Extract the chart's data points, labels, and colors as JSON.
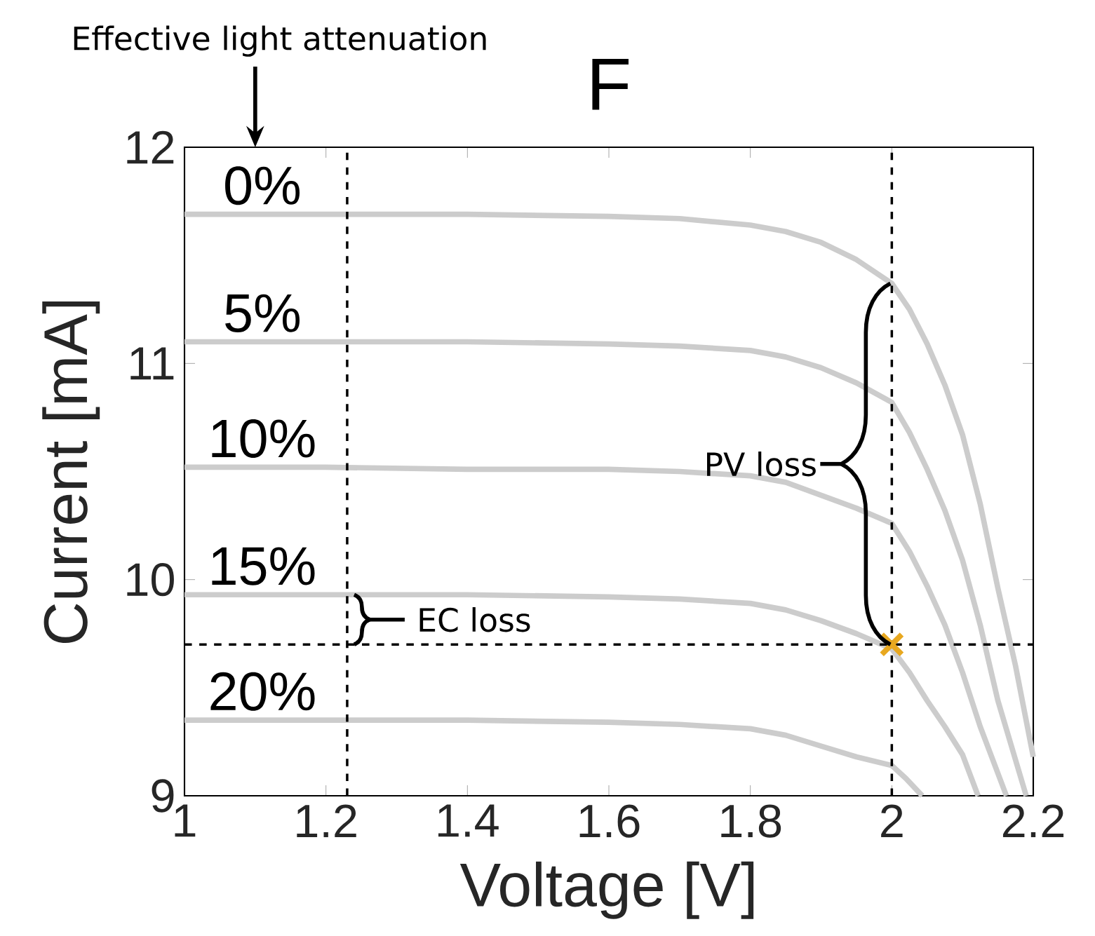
{
  "chart_data": {
    "type": "line",
    "title": "F",
    "xlabel": "Voltage [V]",
    "ylabel": "Current [mA]",
    "xlim": [
      1,
      2.2
    ],
    "ylim": [
      9,
      12
    ],
    "xticks": [
      1,
      1.2,
      1.4,
      1.6,
      1.8,
      2,
      2.2
    ],
    "yticks": [
      9,
      10,
      11,
      12
    ],
    "grid": false,
    "marker": "none",
    "line_style": "solid",
    "series": [
      {
        "name": "0%",
        "color": "#cccccc",
        "x": [
          1,
          1.2,
          1.4,
          1.6,
          1.7,
          1.8,
          1.85,
          1.9,
          1.95,
          2.0,
          2.025,
          2.05,
          2.075,
          2.1,
          2.125,
          2.15,
          2.175,
          2.2
        ],
        "values": [
          11.69,
          11.69,
          11.69,
          11.68,
          11.67,
          11.64,
          11.61,
          11.56,
          11.48,
          11.37,
          11.25,
          11.09,
          10.9,
          10.67,
          10.35,
          9.96,
          9.6,
          9.18
        ]
      },
      {
        "name": "5%",
        "color": "#cccccc",
        "x": [
          1,
          1.2,
          1.4,
          1.6,
          1.7,
          1.8,
          1.85,
          1.9,
          1.95,
          2.0,
          2.025,
          2.05,
          2.075,
          2.1,
          2.125,
          2.15,
          2.19
        ],
        "values": [
          11.1,
          11.1,
          11.1,
          11.09,
          11.08,
          11.06,
          11.03,
          10.98,
          10.91,
          10.82,
          10.68,
          10.51,
          10.32,
          10.09,
          9.79,
          9.44,
          9.0
        ]
      },
      {
        "name": "10%",
        "color": "#cccccc",
        "x": [
          1,
          1.2,
          1.4,
          1.6,
          1.7,
          1.8,
          1.85,
          1.9,
          1.95,
          2.0,
          2.025,
          2.05,
          2.075,
          2.1,
          2.125,
          2.162
        ],
        "values": [
          10.52,
          10.52,
          10.51,
          10.51,
          10.5,
          10.48,
          10.45,
          10.39,
          10.33,
          10.26,
          10.13,
          9.97,
          9.79,
          9.57,
          9.32,
          9.0
        ]
      },
      {
        "name": "15%",
        "color": "#cccccc",
        "x": [
          1,
          1.2,
          1.4,
          1.6,
          1.7,
          1.8,
          1.85,
          1.9,
          1.95,
          2.0,
          2.025,
          2.05,
          2.075,
          2.1,
          2.122
        ],
        "values": [
          9.93,
          9.93,
          9.93,
          9.92,
          9.91,
          9.89,
          9.86,
          9.81,
          9.75,
          9.68,
          9.57,
          9.44,
          9.32,
          9.19,
          9.0
        ]
      },
      {
        "name": "20%",
        "color": "#cccccc",
        "x": [
          1,
          1.2,
          1.4,
          1.6,
          1.7,
          1.8,
          1.85,
          1.9,
          1.95,
          2.0,
          2.02,
          2.043
        ],
        "values": [
          9.35,
          9.35,
          9.35,
          9.34,
          9.33,
          9.31,
          9.28,
          9.23,
          9.18,
          9.14,
          9.08,
          9.0
        ]
      },
      {
        "type": "scatter",
        "color": "#e8a820",
        "marker": "cross",
        "x": [
          2.0
        ],
        "values": [
          9.7
        ]
      }
    ],
    "ref_lines": [
      {
        "axis": "x",
        "value": 1.23,
        "line_style": "dashed",
        "color": "#000000"
      },
      {
        "axis": "x",
        "value": 2.0,
        "line_style": "dashed",
        "color": "#000000"
      },
      {
        "axis": "y",
        "value": 9.7,
        "line_style": "dashed",
        "color": "#000000"
      }
    ],
    "annotations": [
      "Effective light attenuation",
      "PV loss",
      "EC loss"
    ]
  }
}
